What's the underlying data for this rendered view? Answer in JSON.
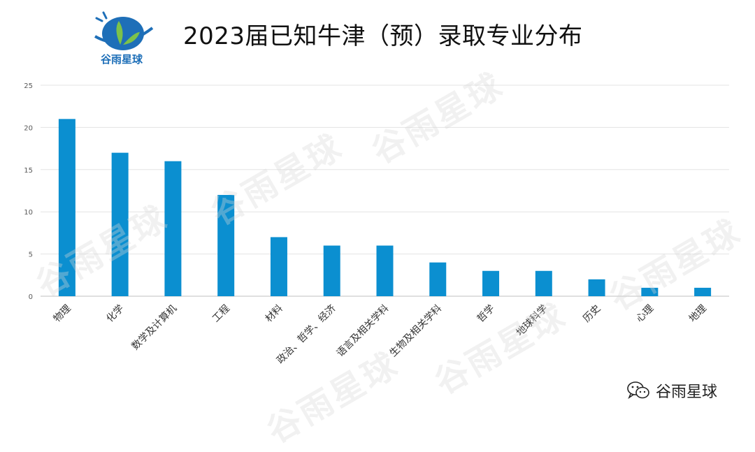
{
  "logo": {
    "text": "谷雨星球"
  },
  "header": {
    "title": "2023届已知牛津（预）录取专业分布"
  },
  "watermark": {
    "text": "谷雨星球"
  },
  "brand": {
    "text": "谷雨星球"
  },
  "colors": {
    "bar": "#0B8FD0",
    "grid": "#E3E3E3",
    "axis": "#BFBFBF",
    "tick": "#595959",
    "logo_blue": "#1E6FB8",
    "logo_green": "#7CC24A"
  },
  "chart_data": {
    "type": "bar",
    "title": "2023届已知牛津（预）录取专业分布",
    "xlabel": "",
    "ylabel": "",
    "categories": [
      "物理",
      "化学",
      "数学及计算机",
      "工程",
      "材料",
      "政治、哲学、经济",
      "语言及相关学科",
      "生物及相关学科",
      "哲学",
      "地球科学",
      "历史",
      "心理",
      "地理"
    ],
    "values": [
      21,
      17,
      16,
      12,
      7,
      6,
      6,
      4,
      3,
      3,
      2,
      1,
      1
    ],
    "ylim": [
      0,
      25
    ],
    "yticks": [
      0,
      5,
      10,
      15,
      20,
      25
    ],
    "grid": true,
    "legend": "none"
  }
}
